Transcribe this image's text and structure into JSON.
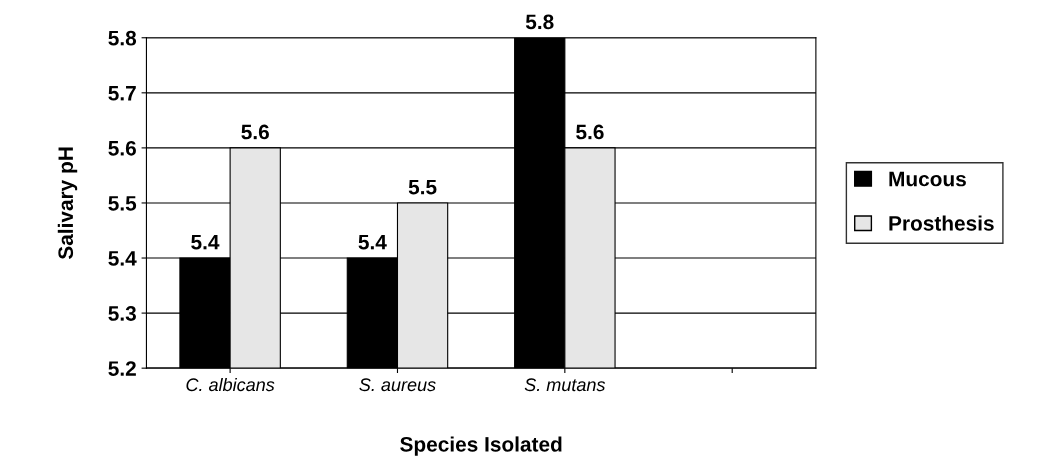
{
  "chart_data": {
    "type": "bar",
    "xlabel": "Species Isolated",
    "ylabel": "Salivary pH",
    "categories": [
      "C. albicans",
      "S. aureus",
      "S. mutans",
      null
    ],
    "series": [
      {
        "name": "Mucous",
        "color": "#000000",
        "values": [
          5.4,
          5.4,
          5.8,
          null
        ]
      },
      {
        "name": "Prosthesis",
        "color": "#e6e6e6",
        "values": [
          5.6,
          5.5,
          5.6,
          null
        ]
      }
    ],
    "ylim": [
      5.2,
      5.8
    ],
    "yticks": [
      5.2,
      5.3,
      5.4,
      5.5,
      5.6,
      5.7,
      5.8
    ],
    "grid": "y",
    "legend": "right",
    "data_labels": true
  }
}
